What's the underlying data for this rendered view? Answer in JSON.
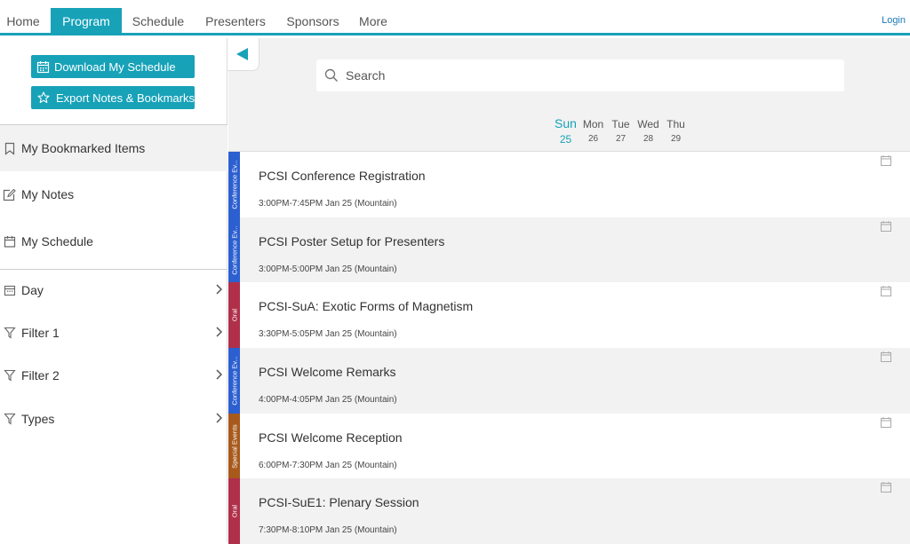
{
  "nav": {
    "tabs": [
      {
        "label": "Home"
      },
      {
        "label": "Program",
        "active": true
      },
      {
        "label": "Schedule"
      },
      {
        "label": "Presenters"
      },
      {
        "label": "Sponsors"
      },
      {
        "label": "More"
      }
    ],
    "login": "Login"
  },
  "sidebar": {
    "download_button": "Download My Schedule",
    "export_button": "Export Notes & Bookmarks",
    "items": [
      {
        "label": "My Bookmarked Items",
        "icon": "bookmark-icon"
      },
      {
        "label": "My Notes",
        "icon": "edit-icon"
      },
      {
        "label": "My Schedule",
        "icon": "calendar-icon"
      }
    ],
    "filters": [
      {
        "label": "Day",
        "icon": "calendar-icon"
      },
      {
        "label": "Filter 1",
        "icon": "filter-icon"
      },
      {
        "label": "Filter 2",
        "icon": "filter-icon"
      },
      {
        "label": "Types",
        "icon": "filter-icon"
      }
    ]
  },
  "search": {
    "placeholder": "Search"
  },
  "days": [
    {
      "name": "Sun",
      "date": "25",
      "active": true
    },
    {
      "name": "Mon",
      "date": "26"
    },
    {
      "name": "Tue",
      "date": "27"
    },
    {
      "name": "Wed",
      "date": "28"
    },
    {
      "name": "Thu",
      "date": "29"
    }
  ],
  "events": [
    {
      "title": "PCSI Conference Registration",
      "time": "3:00PM-7:45PM Jan 25 (Mountain)",
      "tag": "Conference Ev...",
      "tag_color": "#2c5fd0"
    },
    {
      "title": "PCSI Poster Setup for Presenters",
      "time": "3:00PM-5:00PM Jan 25 (Mountain)",
      "tag": "Conference Ev...",
      "tag_color": "#2c5fd0"
    },
    {
      "title": "PCSI-SuA: Exotic Forms of Magnetism",
      "time": "3:30PM-5:05PM Jan 25 (Mountain)",
      "tag": "Oral",
      "tag_color": "#b0304a"
    },
    {
      "title": "PCSI Welcome Remarks",
      "time": "4:00PM-4:05PM Jan 25 (Mountain)",
      "tag": "Conference Ev...",
      "tag_color": "#2c5fd0"
    },
    {
      "title": "PCSI Welcome Reception",
      "time": "6:00PM-7:30PM Jan 25 (Mountain)",
      "tag": "Special Events",
      "tag_color": "#a8591c"
    },
    {
      "title": "PCSI-SuE1: Plenary Session",
      "time": "7:30PM-8:10PM Jan 25 (Mountain)",
      "tag": "Oral",
      "tag_color": "#b0304a"
    }
  ],
  "colors": {
    "accent": "#17a2b8",
    "conference": "#2c5fd0",
    "oral": "#b0304a",
    "special": "#a8591c"
  }
}
